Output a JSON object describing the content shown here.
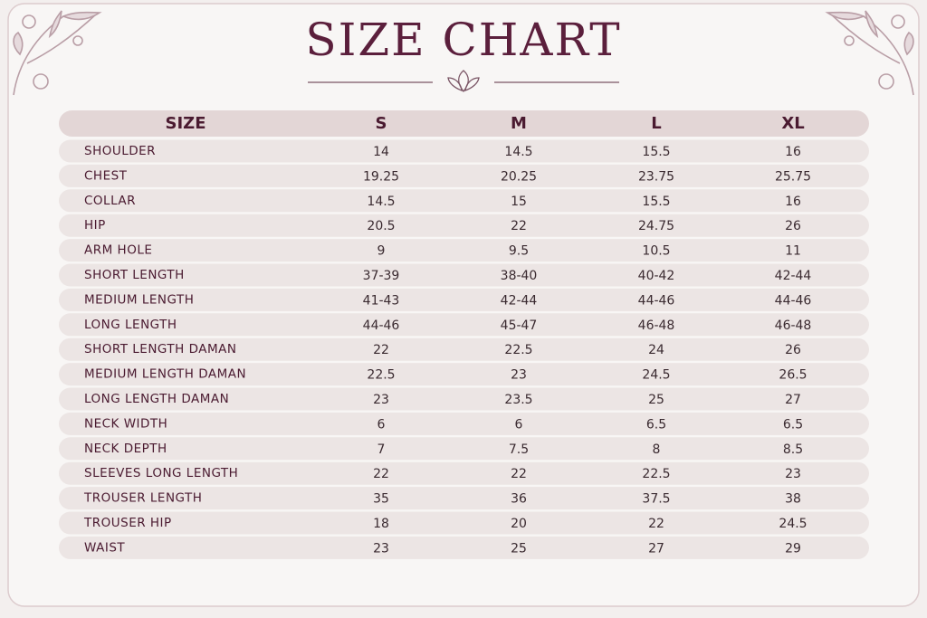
{
  "header": {
    "title": "SIZE CHART"
  },
  "table": {
    "columns": [
      "SIZE",
      "S",
      "M",
      "L",
      "XL"
    ],
    "rows": [
      [
        "SHOULDER",
        "14",
        "14.5",
        "15.5",
        "16"
      ],
      [
        "CHEST",
        "19.25",
        "20.25",
        "23.75",
        "25.75"
      ],
      [
        "COLLAR",
        "14.5",
        "15",
        "15.5",
        "16"
      ],
      [
        "HIP",
        "20.5",
        "22",
        "24.75",
        "26"
      ],
      [
        "ARM HOLE",
        "9",
        "9.5",
        "10.5",
        "11"
      ],
      [
        "SHORT LENGTH",
        "37-39",
        "38-40",
        "40-42",
        "42-44"
      ],
      [
        "MEDIUM LENGTH",
        "41-43",
        "42-44",
        "44-46",
        "44-46"
      ],
      [
        "LONG LENGTH",
        "44-46",
        "45-47",
        "46-48",
        "46-48"
      ],
      [
        "SHORT LENGTH DAMAN",
        "22",
        "22.5",
        "24",
        "26"
      ],
      [
        "MEDIUM LENGTH DAMAN",
        "22.5",
        "23",
        "24.5",
        "26.5"
      ],
      [
        "LONG LENGTH DAMAN",
        "23",
        "23.5",
        "25",
        "27"
      ],
      [
        "NECK WIDTH",
        "6",
        "6",
        "6.5",
        "6.5"
      ],
      [
        "NECK DEPTH",
        "7",
        "7.5",
        "8",
        "8.5"
      ],
      [
        "SLEEVES LONG LENGTH",
        "22",
        "22",
        "22.5",
        "23"
      ],
      [
        "TROUSER LENGTH",
        "35",
        "36",
        "37.5",
        "38"
      ],
      [
        "TROUSER HIP",
        "18",
        "20",
        "22",
        "24.5"
      ],
      [
        "WAIST",
        "23",
        "25",
        "27",
        "29"
      ]
    ]
  }
}
